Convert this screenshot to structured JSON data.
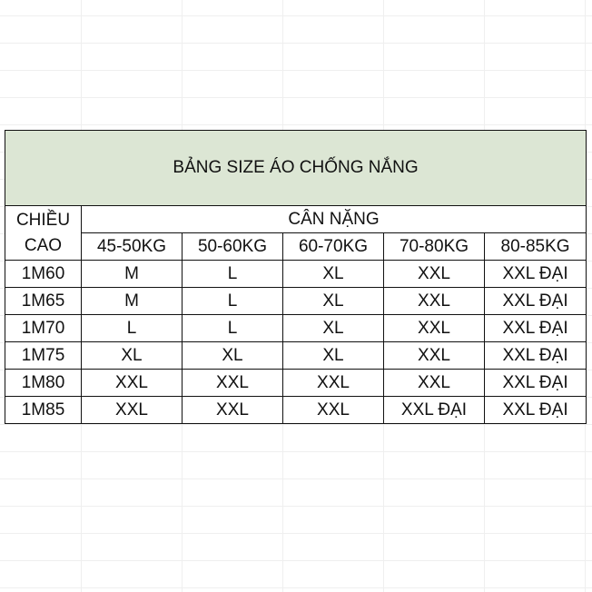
{
  "title": "BẢNG SIZE ÁO CHỐNG NẮNG",
  "height_header": "CHIỀU CAO",
  "weight_header": "CÂN NẶNG",
  "weight_columns": [
    "45-50KG",
    "50-60KG",
    "60-70KG",
    "70-80KG",
    "80-85KG"
  ],
  "rows": [
    {
      "height": "1M60",
      "sizes": [
        "M",
        "L",
        "XL",
        "XXL",
        "XXL ĐẠI"
      ]
    },
    {
      "height": "1M65",
      "sizes": [
        "M",
        "L",
        "XL",
        "XXL",
        "XXL ĐẠI"
      ]
    },
    {
      "height": "1M70",
      "sizes": [
        "L",
        "L",
        "XL",
        "XXL",
        "XXL ĐẠI"
      ]
    },
    {
      "height": "1M75",
      "sizes": [
        "XL",
        "XL",
        "XL",
        "XXL",
        "XXL ĐẠI"
      ]
    },
    {
      "height": "1M80",
      "sizes": [
        "XXL",
        "XXL",
        "XXL",
        "XXL",
        "XXL ĐẠI"
      ]
    },
    {
      "height": "1M85",
      "sizes": [
        "XXL",
        "XXL",
        "XXL",
        "XXL ĐẠI",
        "XXL ĐẠI"
      ]
    }
  ],
  "colors": {
    "title_bg": "#dce6d4",
    "border": "#111111"
  }
}
